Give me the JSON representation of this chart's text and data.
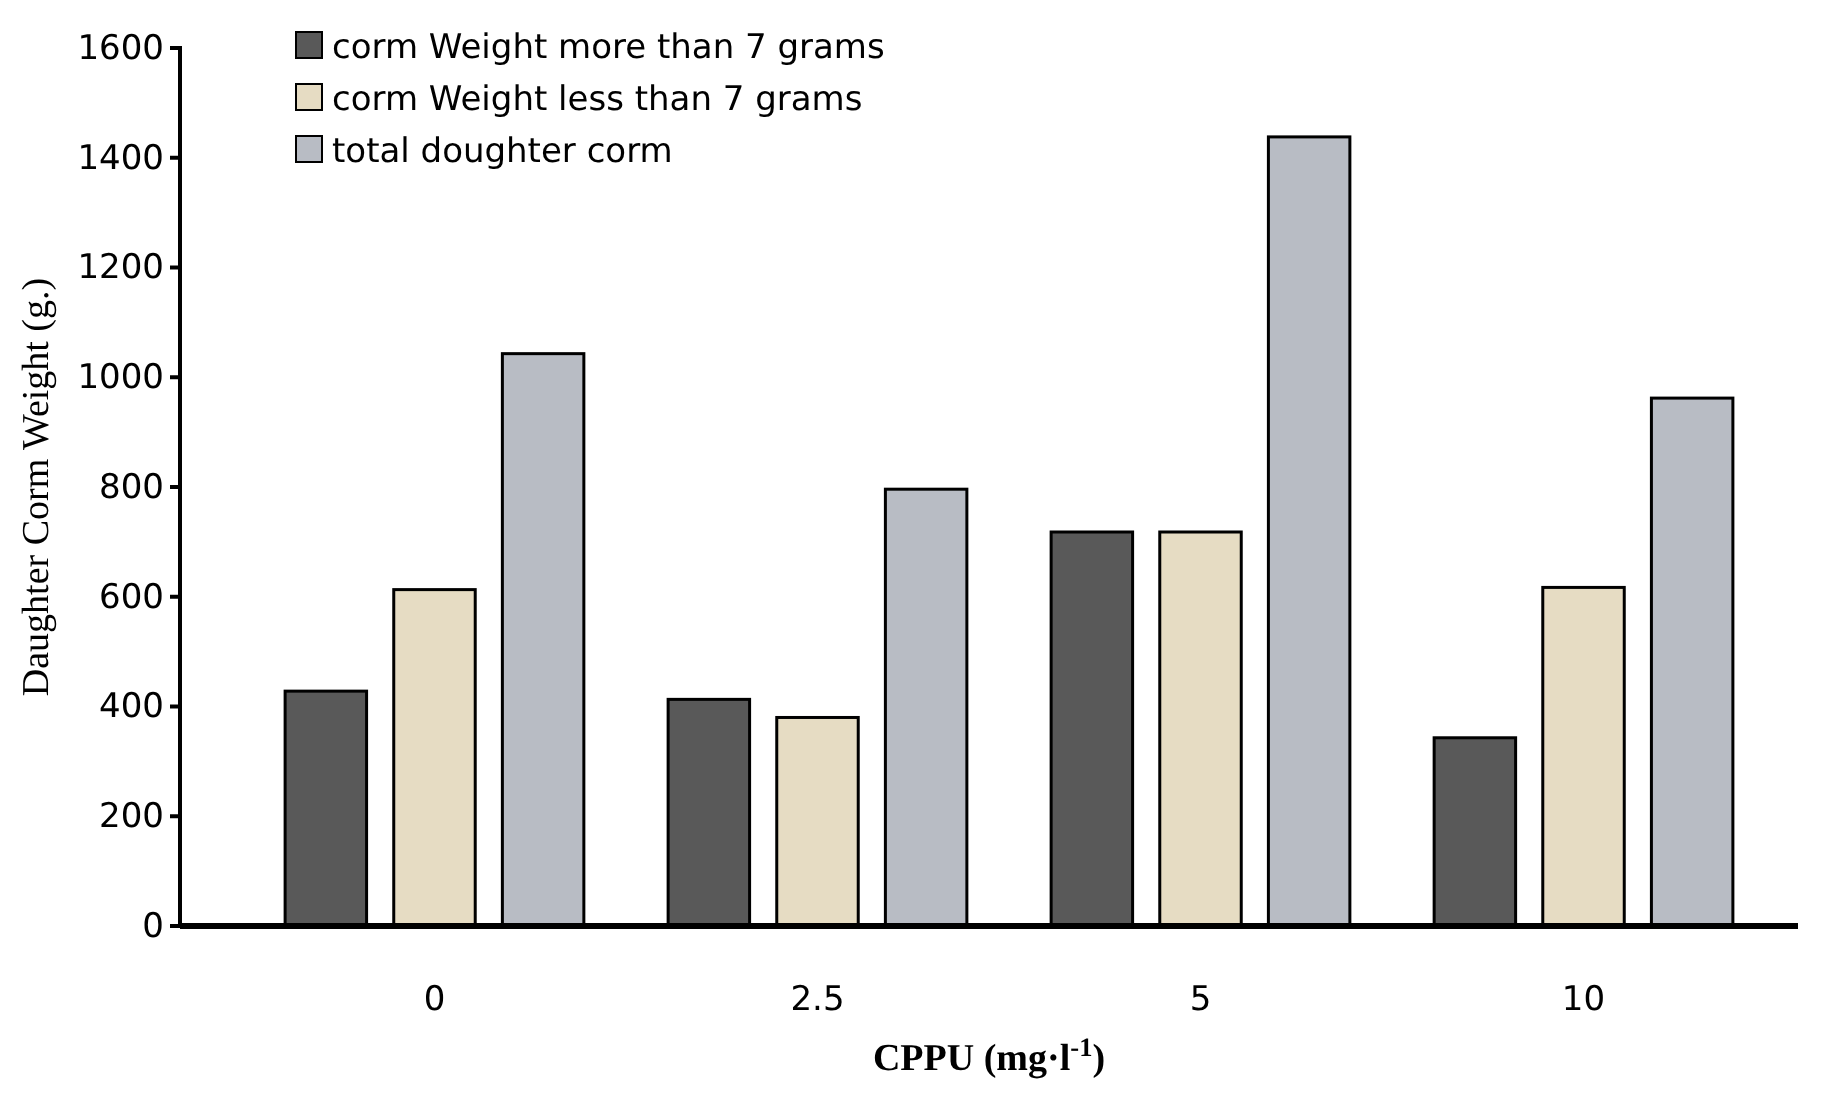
{
  "chart_data": {
    "type": "bar",
    "xlabel": "CPPU (mg·l$^{-1}$)",
    "ylabel": "Daughter Corm Weight (g.)",
    "categories": [
      "0",
      "2.5",
      "5",
      "10"
    ],
    "series": [
      {
        "name": "corm Weight more than 7 grams",
        "color": "#595959",
        "values": [
          428,
          413,
          718,
          343
        ]
      },
      {
        "name": "corm Weight less than 7 grams",
        "color": "#e6dcc3",
        "values": [
          613,
          380,
          718,
          617
        ]
      },
      {
        "name": "total doughter corm",
        "color": "#b8bcc4",
        "values": [
          1043,
          796,
          1438,
          962
        ]
      }
    ],
    "ylim": [
      0,
      1600
    ],
    "yticks": [
      0,
      200,
      400,
      600,
      800,
      1000,
      1200,
      1400,
      1600
    ],
    "grid": false,
    "legend": "top left"
  }
}
